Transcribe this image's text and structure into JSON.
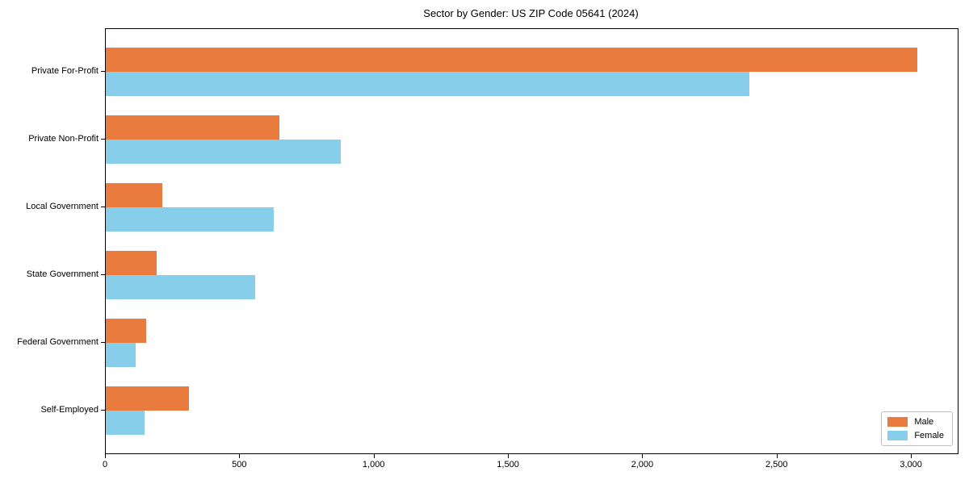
{
  "chart_data": {
    "type": "bar",
    "orientation": "horizontal",
    "title": "Sector by Gender: US ZIP Code 05641 (2024)",
    "categories": [
      "Private For-Profit",
      "Private Non-Profit",
      "Local Government",
      "State Government",
      "Federal Government",
      "Self-Employed"
    ],
    "series": [
      {
        "name": "Male",
        "color": "#E87B3D",
        "values": [
          3020,
          645,
          210,
          190,
          150,
          310
        ]
      },
      {
        "name": "Female",
        "color": "#87CEEB",
        "values": [
          2395,
          875,
          625,
          555,
          110,
          145
        ]
      }
    ],
    "xlabel": "",
    "ylabel": "",
    "xlim": [
      0,
      3171
    ],
    "xtick_values": [
      0,
      500,
      1000,
      1500,
      2000,
      2500,
      3000
    ],
    "xtick_labels": [
      "0",
      "500",
      "1,000",
      "1,500",
      "2,000",
      "2,500",
      "3,000"
    ],
    "grid": false,
    "legend_position": "lower right",
    "axis_color": "#000000",
    "background_color": "#FFFFFF"
  }
}
